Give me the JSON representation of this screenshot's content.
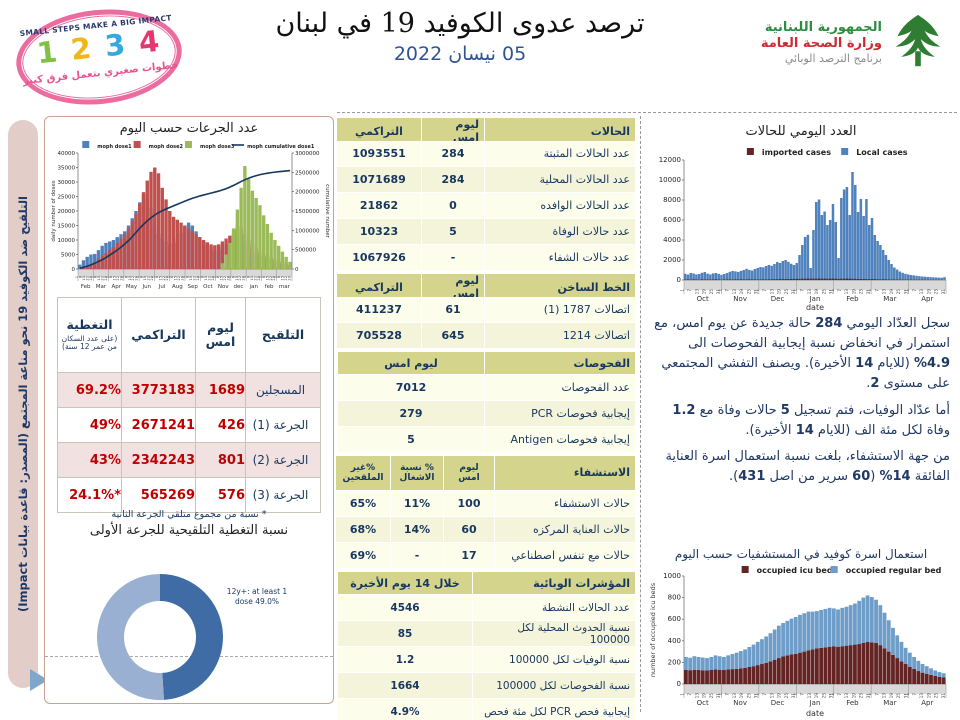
{
  "header": {
    "stamp": {
      "top_text": "SMALL STEPS MAKE A BIG IMPACT",
      "digits": [
        "1",
        "2",
        "3",
        "4"
      ],
      "bottom_text": "خطوات صغيري بتعمل فرق كبير"
    },
    "title": "ترصد عدوى الكوفيد 19 في لبنان",
    "date": "05 نيسان 2022",
    "moph": {
      "line1": "الجمهورية اللبنانية",
      "line2": "وزارة الصحة العامة",
      "line3": "برنامج الترصد الوبائي"
    }
  },
  "sidebar": {
    "text": "التلقيح ضد الكوفيد 19 نحو مناعة المجتمع (المصدر: قاعدة بيانات Impact)"
  },
  "left": {
    "doses_chart_title": "عدد الجرعات حسب اليوم",
    "vaccination": {
      "header": [
        "التلقيح",
        "ليوم امس",
        "التراكمي",
        "التغطية"
      ],
      "coverage_note": "(على عدد السكان من عمر 12 سنة)",
      "rows": [
        [
          "المسجلين",
          "1689",
          "3773183",
          "69.2%"
        ],
        [
          "الجرعة (1)",
          "426",
          "2671241",
          "49%"
        ],
        [
          "الجرعة (2)",
          "801",
          "2342243",
          "43%"
        ],
        [
          "الجرعة (3)",
          "576",
          "565269",
          "24.1%*"
        ]
      ],
      "footnote": "* نسبة من مجموع متلقي الجرعة الثانية"
    },
    "donut_title": "نسبة التغطية التلقيحية للجرعة الأولى",
    "donut_annotation": "12y+: at least 1 dose 49.0%"
  },
  "middle_tables": [
    {
      "id": "cases",
      "header": [
        "الحالات",
        "ليوم امس",
        "التراكمي"
      ],
      "rows": [
        [
          "عدد الحالات المثبتة",
          "284",
          "1093551"
        ],
        [
          "عدد الحالات المحلية",
          "284",
          "1071689"
        ],
        [
          "عدد الحالات الوافده",
          "0",
          "21862"
        ],
        [
          "عدد حالات الوفاة",
          "5",
          "10323"
        ],
        [
          "عدد حالات الشفاء",
          "-",
          "1067926"
        ]
      ]
    },
    {
      "id": "hotline",
      "header": [
        "الخط الساخن",
        "ليوم امس",
        "التراكمي"
      ],
      "rows": [
        [
          "اتصالات 1787 (1)",
          "61",
          "411237"
        ],
        [
          "اتصالات 1214",
          "645",
          "705528"
        ]
      ]
    },
    {
      "id": "tests",
      "span": true,
      "header": [
        "الفحوصات",
        "ليوم امس"
      ],
      "rows": [
        [
          "عدد الفحوصات",
          "7012"
        ],
        [
          "إيجابية فحوصات PCR",
          "279"
        ],
        [
          "إيجابية فحوصات Antigen",
          "5"
        ]
      ]
    },
    {
      "id": "hosp",
      "header": [
        "الاستشفاء",
        "ليوم امس",
        "% نسبة الاشغال",
        "%غير الملقحين"
      ],
      "rows": [
        [
          "حالات الاستشفاء",
          "100",
          "11%",
          "65%"
        ],
        [
          "حالات العناية المركزه",
          "60",
          "14%",
          "68%"
        ],
        [
          "حالات مع تنفس اصطناعي",
          "17",
          "-",
          "69%"
        ]
      ]
    },
    {
      "id": "indicators",
      "span": true,
      "header": [
        "المؤشرات الوبائية",
        "خلال 14 يوم الأخيرة"
      ],
      "rows": [
        [
          "عدد الحالات النشطة",
          "4546"
        ],
        [
          "نسبة الحدوث المحلية لكل 100000",
          "85"
        ],
        [
          "نسبة الوفيات لكل 100000",
          "1.2"
        ],
        [
          "نسبة الفحوصات لكل 100000",
          "1664"
        ],
        [
          "إيجابية فحص PCR لكل مئة فحص",
          "4.9%"
        ]
      ]
    }
  ],
  "right": {
    "daily_chart_title": "العدد اليومي للحالات",
    "paragraphs": [
      "سجل العدّاد اليومي 284 حالة جديدة عن يوم امس، مع استمرار في انخفاض نسبة إيجابية الفحوصات الى 4.9% (للايام 14 الأخيرة). ويصنف التفشي المجتمعي على مستوى 2.",
      "أما عدّاد الوفيات، فتم تسجيل 5 حالات وفاة مع 1.2 وفاة لكل مئة الف (للايام 14 الأخيرة).",
      "من جهة الاستشفاء، بلغت نسبة استعمال اسرة العناية الفائقة 14% (60 سرير من اصل 431)."
    ],
    "beds_chart_title": "استعمال اسرة كوفيد في المستشفيات حسب اليوم"
  },
  "colors": {
    "dose1": "#4f81bd",
    "dose2": "#c0504d",
    "dose3": "#9bbb59",
    "cumulative": "#17375e",
    "local": "#4f81bd",
    "imported": "#632423",
    "icu": "#632423",
    "regular": "#6e9dc9",
    "donut_dark": "#3f6ca5",
    "donut_light": "#9ab0d3",
    "table_header_bg": "#d4d48c",
    "navy": "#17375e",
    "value_red": "#c00000",
    "sidebar_pink": "#e3cdc8",
    "stamp_pink": "#e8528e",
    "moph_green": "#2e8b40",
    "moph_red": "#cc2b31"
  },
  "chart_data": [
    {
      "id": "doses_by_day",
      "type": "bar",
      "title": "عدد الجرعات حسب اليوم",
      "ylabel_left": "daily number of doses",
      "ylabel_right": "cumulative number",
      "ylim_left": [
        0,
        40000
      ],
      "ystep_left": 5000,
      "ylim_right": [
        0,
        3000000
      ],
      "ystep_right": 500000,
      "x_months": [
        "Feb",
        "Mar",
        "Apr",
        "May",
        "Jun",
        "Jul",
        "Aug",
        "Sep",
        "Oct",
        "Nov",
        "dec",
        "jan",
        "feb",
        "mar"
      ],
      "x_day_ticks": [
        1,
        8,
        15,
        22,
        29
      ],
      "legend": [
        {
          "label": "moph dose1",
          "color_key": "dose1",
          "shape": "rect"
        },
        {
          "label": "moph dose2",
          "color_key": "dose2",
          "shape": "rect"
        },
        {
          "label": "moph dose3",
          "color_key": "dose3",
          "shape": "rect"
        },
        {
          "label": "moph cumulative dose1",
          "color_key": "cumulative",
          "shape": "line"
        }
      ],
      "series": [
        {
          "name": "moph dose1",
          "type": "bar",
          "color_key": "dose1",
          "values": [
            1500,
            3000,
            4200,
            5000,
            5200,
            6500,
            8000,
            9000,
            9500,
            10000,
            11000,
            12000,
            13000,
            15000,
            17500,
            20000,
            23000,
            25500,
            24000,
            21000,
            15000,
            12000,
            10500,
            9500,
            8500,
            9000,
            10500,
            12500,
            14500,
            16000,
            15000,
            13000,
            11000,
            9500,
            8000,
            7000,
            6200,
            6500,
            7500,
            8500,
            9500,
            12000,
            14000,
            12000,
            9500,
            7500,
            6000,
            5000,
            4500,
            4000,
            3500,
            3000,
            2500,
            2000,
            1700,
            1400,
            1100
          ]
        },
        {
          "name": "moph dose2",
          "type": "bar",
          "color_key": "dose2",
          "values": [
            0,
            300,
            800,
            1500,
            2500,
            3500,
            4500,
            5500,
            6500,
            7500,
            9000,
            10500,
            12000,
            14000,
            16500,
            19000,
            22500,
            26500,
            30500,
            33500,
            35000,
            33000,
            28000,
            24000,
            20000,
            18000,
            17000,
            16000,
            15000,
            14000,
            13000,
            12000,
            11000,
            10000,
            9200,
            8500,
            8200,
            8500,
            9500,
            10500,
            11500,
            13500,
            15000,
            14000,
            12000,
            10000,
            8500,
            7000,
            6000,
            5200,
            4500,
            4000,
            3400,
            2900,
            2400,
            1900,
            1500
          ]
        },
        {
          "name": "moph dose3",
          "type": "bar",
          "color_key": "dose3",
          "values": [
            0,
            0,
            0,
            0,
            0,
            0,
            0,
            0,
            0,
            0,
            0,
            0,
            0,
            0,
            0,
            0,
            0,
            0,
            0,
            0,
            0,
            0,
            0,
            0,
            0,
            0,
            0,
            0,
            0,
            0,
            0,
            0,
            0,
            0,
            0,
            0,
            0,
            0,
            2000,
            5000,
            9000,
            14000,
            20500,
            28000,
            35500,
            31000,
            27000,
            24500,
            22000,
            18500,
            15500,
            12500,
            10000,
            8000,
            6000,
            4200,
            2500
          ]
        },
        {
          "name": "moph cumulative dose1",
          "type": "line",
          "color_key": "cumulative",
          "values": [
            20000,
            45000,
            75000,
            110000,
            150000,
            195000,
            245000,
            300000,
            360000,
            425000,
            495000,
            570000,
            650000,
            740000,
            840000,
            950000,
            1060000,
            1160000,
            1250000,
            1330000,
            1400000,
            1460000,
            1510000,
            1555000,
            1595000,
            1635000,
            1675000,
            1715000,
            1755000,
            1795000,
            1830000,
            1860000,
            1890000,
            1915000,
            1940000,
            1965000,
            1990000,
            2015000,
            2045000,
            2080000,
            2120000,
            2165000,
            2215000,
            2265000,
            2310000,
            2350000,
            2385000,
            2415000,
            2440000,
            2460000,
            2477000,
            2492000,
            2505000,
            2517000,
            2527000,
            2536000,
            2545000
          ]
        }
      ]
    },
    {
      "id": "daily_cases",
      "type": "bar",
      "title": "العدد اليومي للحالات",
      "xlabel": "date",
      "ylim_left": [
        0,
        12000
      ],
      "ystep_left": 2000,
      "x_months": [
        "Oct",
        "Nov",
        "Dec",
        "Jan",
        "Feb",
        "Mar",
        "Apr"
      ],
      "x_day_ticks": [
        1,
        7,
        13,
        19,
        25,
        31
      ],
      "legend": [
        {
          "label": "imported cases",
          "color_key": "imported",
          "shape": "rect"
        },
        {
          "label": "Local cases",
          "color_key": "local",
          "shape": "rect"
        }
      ],
      "series": [
        {
          "name": "Local cases",
          "type": "bar",
          "color_key": "local",
          "values": [
            620,
            540,
            700,
            650,
            560,
            600,
            720,
            800,
            640,
            560,
            660,
            700,
            610,
            520,
            600,
            700,
            820,
            900,
            860,
            800,
            910,
            1000,
            1120,
            1010,
            950,
            1100,
            1210,
            1300,
            1260,
            1400,
            1500,
            1420,
            1600,
            1800,
            1700,
            1900,
            2000,
            1820,
            1620,
            1500,
            1700,
            2500,
            3500,
            4300,
            4520,
            1200,
            5000,
            7800,
            8050,
            6500,
            6850,
            5500,
            6000,
            7600,
            5800,
            2200,
            8200,
            9050,
            9300,
            6500,
            10800,
            9500,
            6800,
            8100,
            6400,
            8100,
            5500,
            6200,
            4500,
            3900,
            3500,
            3000,
            2500,
            2000,
            1600,
            1250,
            1050,
            850,
            720,
            620,
            560,
            500,
            460,
            420,
            380,
            350,
            330,
            310,
            290,
            270,
            255,
            240,
            230,
            284
          ]
        },
        {
          "name": "imported cases",
          "type": "bar",
          "color_key": "imported",
          "values": [
            35,
            50,
            40,
            60,
            45,
            30,
            55,
            40,
            50,
            35,
            45,
            60,
            40,
            30,
            50,
            45,
            55,
            40,
            60,
            50,
            65,
            45,
            55,
            70,
            50,
            60,
            45,
            55,
            65,
            50,
            60,
            70,
            80,
            75,
            90,
            85,
            100,
            95,
            110,
            100,
            120,
            110,
            130,
            120,
            140,
            130,
            140,
            120,
            150,
            130,
            140,
            120,
            130,
            140,
            120,
            110,
            130,
            120,
            140,
            130,
            120,
            110,
            100,
            90,
            100,
            90,
            80,
            90,
            80,
            70,
            60,
            70,
            60,
            50,
            50,
            45,
            40,
            40,
            35,
            35,
            30,
            30,
            25,
            25,
            20,
            20,
            20,
            15,
            15,
            15,
            10,
            10,
            10,
            0
          ]
        }
      ]
    },
    {
      "id": "bed_occupancy",
      "type": "stacked-bar",
      "title": "استعمال اسرة كوفيد في المستشفيات حسب اليوم",
      "xlabel": "date",
      "ylabel_left": "number of occupied icu beds",
      "ylim_left": [
        0,
        1000
      ],
      "ystep_left": 200,
      "x_months": [
        "Oct",
        "Nov",
        "Dec",
        "Jan",
        "Feb",
        "Mar",
        "Apr"
      ],
      "x_day_ticks": [
        1,
        7,
        13,
        19,
        25,
        31
      ],
      "legend": [
        {
          "label": "occupied icu bed",
          "color_key": "icu",
          "shape": "rect"
        },
        {
          "label": "occupied regular bed",
          "color_key": "regular",
          "shape": "rect"
        }
      ],
      "series": [
        {
          "name": "occupied icu bed",
          "type": "bar",
          "color_key": "icu",
          "values": [
            130,
            128,
            132,
            130,
            127,
            125,
            130,
            135,
            132,
            130,
            135,
            138,
            140,
            145,
            150,
            158,
            165,
            175,
            185,
            195,
            210,
            225,
            240,
            255,
            265,
            275,
            280,
            290,
            300,
            310,
            320,
            330,
            335,
            340,
            345,
            350,
            345,
            350,
            355,
            360,
            365,
            370,
            380,
            390,
            385,
            380,
            360,
            330,
            300,
            270,
            240,
            210,
            185,
            160,
            140,
            120,
            105,
            95,
            85,
            75,
            65,
            60
          ]
        },
        {
          "name": "occupied regular bed",
          "type": "bar",
          "color_key": "regular",
          "values": [
            120,
            115,
            125,
            120,
            118,
            115,
            120,
            130,
            125,
            120,
            130,
            140,
            150,
            160,
            170,
            185,
            200,
            215,
            230,
            245,
            260,
            280,
            300,
            310,
            320,
            330,
            340,
            350,
            355,
            360,
            350,
            345,
            350,
            355,
            360,
            350,
            345,
            355,
            360,
            370,
            380,
            400,
            420,
            430,
            420,
            400,
            370,
            330,
            290,
            250,
            210,
            180,
            150,
            130,
            110,
            95,
            80,
            70,
            60,
            50,
            45,
            40
          ]
        }
      ]
    },
    {
      "id": "first_dose_coverage",
      "type": "pie",
      "title": "نسبة التغطية التلقيحية للجرعة الأولى",
      "annotation": "12y+: at least 1 dose 49.0%",
      "slices": [
        {
          "label": "12y+: at least 1 dose",
          "value": 49.0,
          "color_key": "donut_dark"
        },
        {
          "label": "",
          "value": 51.0,
          "color_key": "donut_light"
        }
      ]
    }
  ]
}
